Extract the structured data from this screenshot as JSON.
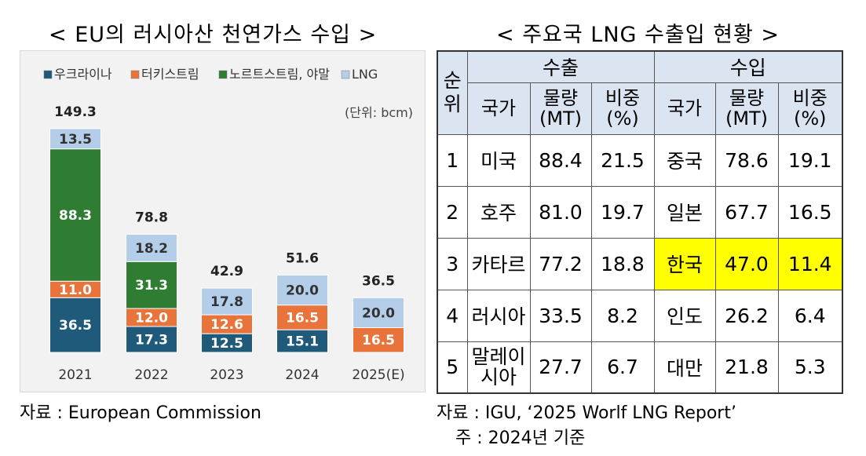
{
  "left_title": "< EU의 러시아산 천연가스 수입 >",
  "right_title": "< 주요국 LNG 수출입 현황 >",
  "chart_data": {
    "type": "bar",
    "stacked": true,
    "unit_note": "(단위: bcm)",
    "categories": [
      "2021",
      "2022",
      "2023",
      "2024",
      "2025(E)"
    ],
    "totals": [
      149.3,
      78.8,
      42.9,
      51.6,
      36.5
    ],
    "legend_position": "top",
    "series": [
      {
        "name": "우크라이나",
        "color": "#1f5a7a",
        "values": [
          36.5,
          17.3,
          12.5,
          15.1,
          null
        ]
      },
      {
        "name": "터키스트림",
        "color": "#e8743b",
        "values": [
          11.0,
          12.0,
          12.6,
          16.5,
          16.5
        ]
      },
      {
        "name": "노르트스트림, 야말",
        "color": "#2e7d32",
        "values": [
          88.3,
          31.3,
          null,
          null,
          null
        ]
      },
      {
        "name": "LNG",
        "color": "#b4cde8",
        "values": [
          13.5,
          18.2,
          17.8,
          20.0,
          20.0
        ]
      }
    ],
    "ylim": [
      0,
      155
    ],
    "grid": false
  },
  "left_source": "자료 : European Commission",
  "table": {
    "rank_header": "순위",
    "export_header": "수출",
    "import_header": "수입",
    "col_country": "국가",
    "col_volume": "물량(MT)",
    "col_share": "비중(%)",
    "rows": [
      {
        "rank": "1",
        "ex_country": "미국",
        "ex_volume": "88.4",
        "ex_share": "21.5",
        "im_country": "중국",
        "im_volume": "78.6",
        "im_share": "19.1"
      },
      {
        "rank": "2",
        "ex_country": "호주",
        "ex_volume": "81.0",
        "ex_share": "19.7",
        "im_country": "일본",
        "im_volume": "67.7",
        "im_share": "16.5"
      },
      {
        "rank": "3",
        "ex_country": "카타르",
        "ex_volume": "77.2",
        "ex_share": "18.8",
        "im_country": "한국",
        "im_volume": "47.0",
        "im_share": "11.4"
      },
      {
        "rank": "4",
        "ex_country": "러시아",
        "ex_volume": "33.5",
        "ex_share": "8.2",
        "im_country": "인도",
        "im_volume": "26.2",
        "im_share": "6.4"
      },
      {
        "rank": "5",
        "ex_country": "말레이시아",
        "ex_volume": "27.7",
        "ex_share": "6.7",
        "im_country": "대만",
        "im_volume": "21.8",
        "im_share": "5.3"
      }
    ],
    "highlight_color": "#ffff00"
  },
  "right_source": "자료 : IGU, ‘2025 Worlf LNG Report’",
  "right_note": "주 : 2024년 기준"
}
